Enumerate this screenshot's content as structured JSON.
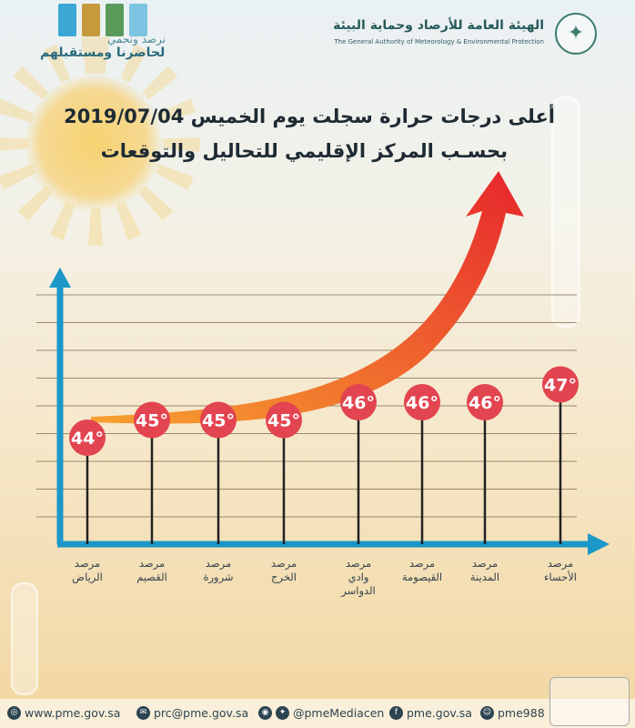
{
  "header": {
    "slogan_line1": "نرصد ونحمي",
    "slogan_line2": "لحاضرنا ومستقبلهم",
    "authority_ar": "الهيئة العامة للأرصاد وحماية البيئة",
    "authority_en": "The General Authority of Meteorology & Environmental Protection"
  },
  "title": {
    "line1": "أعلى درجات حرارة سجلت يوم الخميس  2019/07/04",
    "line2": "بحسـب المركز الإقليمي للتحاليل والتوقعات"
  },
  "colors": {
    "axis": "#1b97c8",
    "marker": "#e24450",
    "arrow_start": "#f7a12f",
    "arrow_end": "#e7262d",
    "grid": "#7c6a4c"
  },
  "chart_data": {
    "type": "bar",
    "categories": [
      [
        "مرصد",
        "الرياض"
      ],
      [
        "مرصد",
        "القصيم"
      ],
      [
        "مرصد",
        "شرورة"
      ],
      [
        "مرصد",
        "الخرج"
      ],
      [
        "مرصد",
        "وادي",
        "الدواسر"
      ],
      [
        "مرصد",
        "القيصومة"
      ],
      [
        "مرصد",
        "المدينة"
      ],
      [
        "مرصد",
        "الأحساء"
      ]
    ],
    "values": [
      44,
      45,
      45,
      45,
      46,
      46,
      46,
      47
    ],
    "labels": [
      "44°",
      "45°",
      "45°",
      "45°",
      "46°",
      "46°",
      "46°",
      "47°"
    ],
    "grid": true
  },
  "footer": {
    "website": "www.pme.gov.sa",
    "email": "prc@pme.gov.sa",
    "social": "@pmeMediacen",
    "facebook": "pme.gov.sa",
    "snapchat": "pme988"
  }
}
